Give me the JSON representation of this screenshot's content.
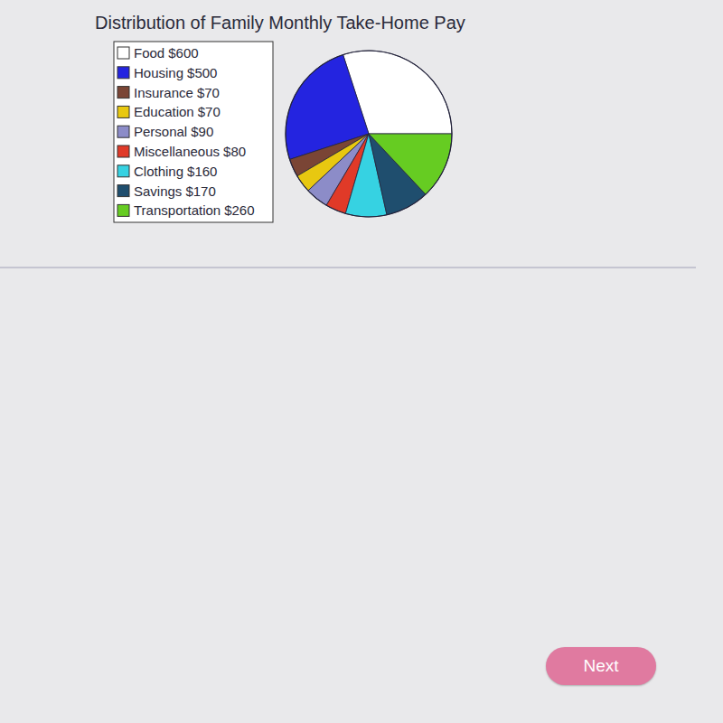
{
  "chart_data": {
    "type": "pie",
    "title": "Distribution of Family Monthly Take-Home Pay",
    "categories": [
      "Food",
      "Housing",
      "Insurance",
      "Education",
      "Personal",
      "Miscellaneous",
      "Clothing",
      "Savings",
      "Transportation"
    ],
    "values": [
      600,
      500,
      70,
      70,
      90,
      80,
      160,
      170,
      260
    ],
    "value_labels": [
      "$600",
      "$500",
      "$70",
      "$70",
      "$90",
      "$80",
      "$160",
      "$170",
      "$260"
    ],
    "colors": [
      "#ffffff",
      "#2424e0",
      "#7a4535",
      "#e8c810",
      "#8c8cc8",
      "#e03a28",
      "#36d2e2",
      "#1f4e6e",
      "#66cc22"
    ],
    "legend": "left"
  },
  "button": {
    "label": "Next"
  }
}
